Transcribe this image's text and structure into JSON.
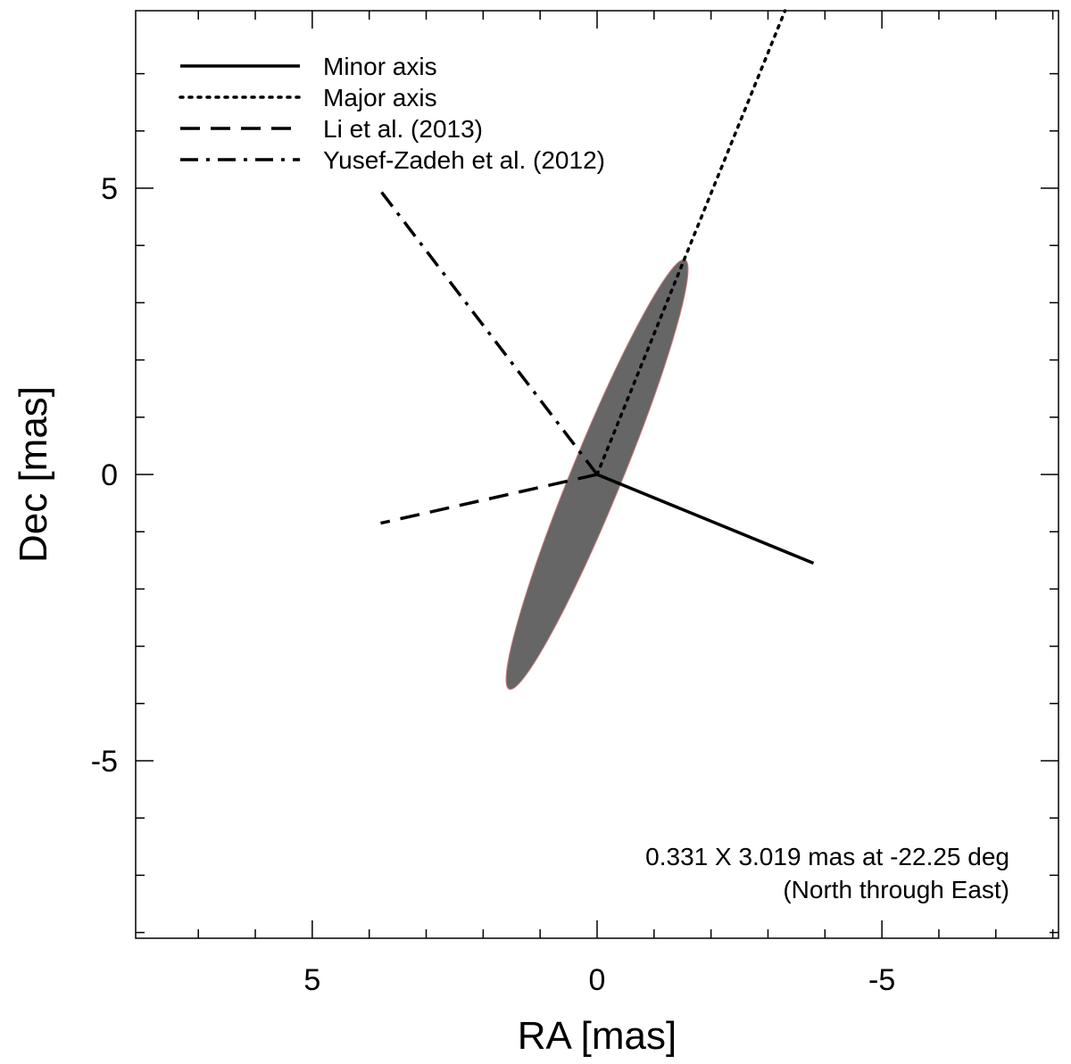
{
  "chart_data": {
    "type": "line",
    "title": "",
    "xlabel": "RA [mas]",
    "ylabel": "Dec [mas]",
    "xlim": [
      8.1,
      -8.1
    ],
    "ylim": [
      -8.1,
      8.1
    ],
    "x_reversed": true,
    "x_major_ticks": [
      5,
      0,
      -5
    ],
    "x_tick_labels": [
      "5",
      "0",
      "-5"
    ],
    "x_minor_ticks": [
      7,
      6,
      5,
      4,
      3,
      2,
      1,
      0,
      -1,
      -2,
      -3,
      -4,
      -5,
      -6,
      -7,
      -8
    ],
    "y_major_ticks": [
      5,
      0,
      -5
    ],
    "y_tick_labels": [
      "5",
      "0",
      "-5"
    ],
    "y_minor_ticks": [
      -8,
      -7,
      -6,
      -5,
      -4,
      -3,
      -2,
      -1,
      0,
      1,
      2,
      3,
      4,
      5,
      6,
      7
    ],
    "grid": false,
    "legend_position": "top-left",
    "ellipse": {
      "center": [
        0,
        0
      ],
      "minor_axis_mas": 0.331,
      "major_axis_mas": 3.019,
      "position_angle_deg": -22.25,
      "note": "semi-axes drawn as 0.331 x 3.019 mas scaled x1.35 on plot",
      "fill_color": "#666666",
      "edge_color": "#d08080"
    },
    "series": [
      {
        "name": "Minor axis",
        "style": "solid",
        "x": [
          0,
          -3.8
        ],
        "y": [
          0,
          -1.55
        ]
      },
      {
        "name": "Major axis",
        "style": "dotted",
        "x": [
          0,
          -3.3
        ],
        "y": [
          0,
          8.1
        ]
      },
      {
        "name": "Li et al. (2013)",
        "style": "dashed",
        "x": [
          0,
          3.8
        ],
        "y": [
          0,
          -0.85
        ]
      },
      {
        "name": "Yusef-Zadeh et al. (2012)",
        "style": "dashdot",
        "x": [
          0,
          3.8
        ],
        "y": [
          0,
          4.95
        ]
      }
    ],
    "annotations": [
      "0.331 X 3.019 mas at -22.25 deg",
      "(North through East)"
    ]
  }
}
